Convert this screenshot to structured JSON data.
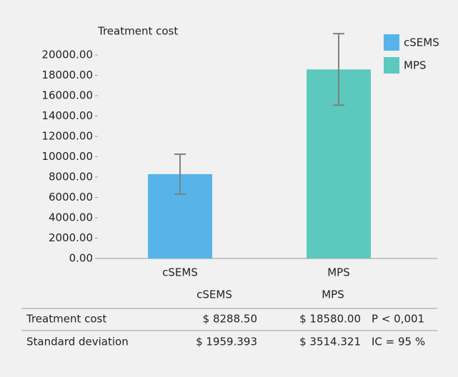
{
  "chart_data": {
    "type": "bar",
    "y_label": "Treatment cost",
    "categories": [
      "cSEMS",
      "MPS"
    ],
    "values": [
      8288.5,
      18580.0
    ],
    "errors": [
      1959.393,
      3514.321
    ],
    "colors": [
      "#56b4e9",
      "#5cc8be"
    ],
    "error_color": "#808080",
    "ylim": [
      0,
      20000
    ],
    "yticks": [
      {
        "value": 0,
        "label": "0.00"
      },
      {
        "value": 2000,
        "label": "2000.00"
      },
      {
        "value": 4000,
        "label": "4000.00"
      },
      {
        "value": 6000,
        "label": "6000.00"
      },
      {
        "value": 8000,
        "label": "8000.00"
      },
      {
        "value": 10000,
        "label": "10000.00"
      },
      {
        "value": 12000,
        "label": "12000.00"
      },
      {
        "value": 14000,
        "label": "14000.00"
      },
      {
        "value": 16000,
        "label": "16000.00"
      },
      {
        "value": 18000,
        "label": "18000.00"
      },
      {
        "value": 20000,
        "label": "20000.00"
      }
    ],
    "grid": false,
    "legend": "top-right"
  },
  "table": {
    "columns": [
      "cSEMS",
      "MPS"
    ],
    "rows": [
      [
        "Treatment cost",
        "$ 8288.50",
        "$ 18580.00",
        "P < 0,001"
      ],
      [
        "Standard deviation",
        "$ 1959.393",
        "$ 3514.321",
        "IC = 95 %"
      ]
    ]
  }
}
